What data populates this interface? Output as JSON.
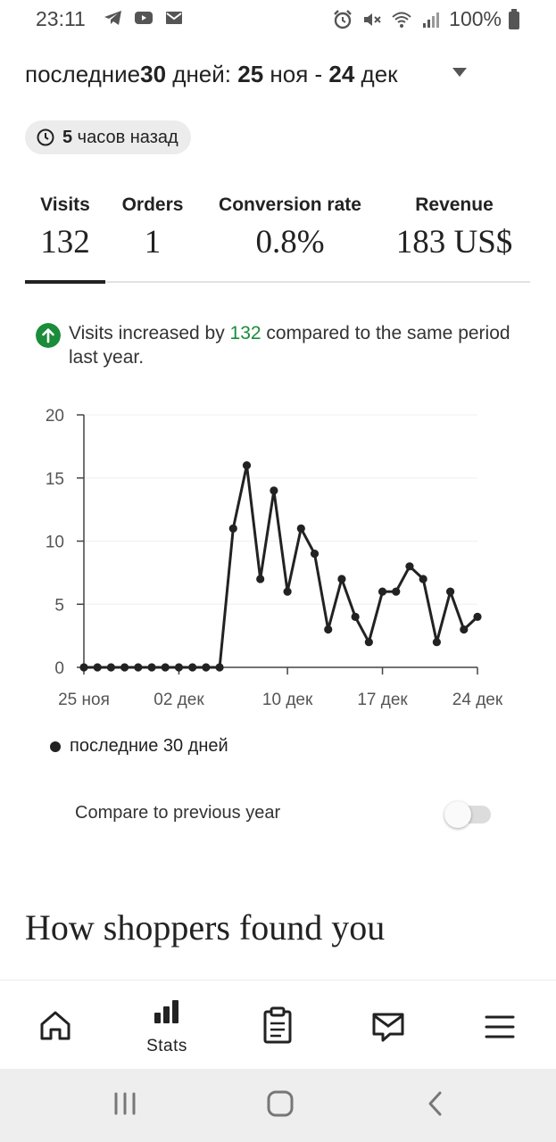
{
  "status_bar": {
    "time": "23:11",
    "battery_text": "100%",
    "left_icons": [
      "telegram-icon",
      "youtube-icon",
      "mail-icon"
    ],
    "right_icons": [
      "alarm-icon",
      "mute-icon",
      "wifi-icon",
      "signal-icon",
      "battery-icon"
    ]
  },
  "date_range": {
    "prefix": "последние ",
    "days": "30",
    "middle": " дней: ",
    "start_day": "25",
    "start_month": " ноя - ",
    "end_day": "24",
    "end_month": " дек"
  },
  "updated_badge": {
    "number": "5",
    "text": " часов назад"
  },
  "metrics": [
    {
      "label": "Visits",
      "value": "132"
    },
    {
      "label": "Orders",
      "value": "1"
    },
    {
      "label": "Conversion rate",
      "value": "0.8%"
    },
    {
      "label": "Revenue",
      "value": "183 US$"
    }
  ],
  "active_metric": "Visits",
  "insight": {
    "text_before": "Visits increased by ",
    "highlight": "132",
    "text_after": " compared to the same period last year."
  },
  "chart_data": {
    "type": "line",
    "x": [
      "25 ноя",
      "26 ноя",
      "27 ноя",
      "28 ноя",
      "29 ноя",
      "30 ноя",
      "01 дек",
      "02 дек",
      "03 дек",
      "04 дек",
      "05 дек",
      "06 дек",
      "07 дек",
      "08 дек",
      "09 дек",
      "10 дек",
      "11 дек",
      "12 дек",
      "13 дек",
      "14 дек",
      "15 дек",
      "16 дек",
      "17 дек",
      "18 дек",
      "19 дек",
      "20 дек",
      "21 дек",
      "22 дек",
      "23 дек",
      "24 дек"
    ],
    "series": [
      {
        "name": "последние 30 дней",
        "values": [
          0,
          0,
          0,
          0,
          0,
          0,
          0,
          0,
          0,
          0,
          0,
          11,
          16,
          7,
          14,
          6,
          11,
          9,
          3,
          7,
          4,
          2,
          6,
          6,
          8,
          7,
          2,
          6,
          3,
          4
        ]
      }
    ],
    "x_tick_labels": [
      "25 ноя",
      "02 дек",
      "10 дек",
      "17 дек",
      "24 дек"
    ],
    "x_tick_indices": [
      0,
      7,
      15,
      22,
      29
    ],
    "y_ticks": [
      "0",
      "5",
      "10",
      "15",
      "20"
    ],
    "ylim": [
      0,
      20
    ],
    "grid": true,
    "line_color": "#222222"
  },
  "legend": {
    "label": "последние 30 дней"
  },
  "compare": {
    "label": "Compare to previous year",
    "enabled": false
  },
  "section_title": "How shoppers found you",
  "bottom_nav": [
    {
      "icon": "home-icon",
      "label": ""
    },
    {
      "icon": "stats-icon",
      "label": "Stats"
    },
    {
      "icon": "orders-icon",
      "label": ""
    },
    {
      "icon": "messages-icon",
      "label": ""
    },
    {
      "icon": "menu-icon",
      "label": ""
    }
  ],
  "colors": {
    "accent_green": "#1a8c3a",
    "text_dark": "#222222",
    "badge_bg": "#ececec",
    "system_nav_bg": "#eeeeee"
  }
}
